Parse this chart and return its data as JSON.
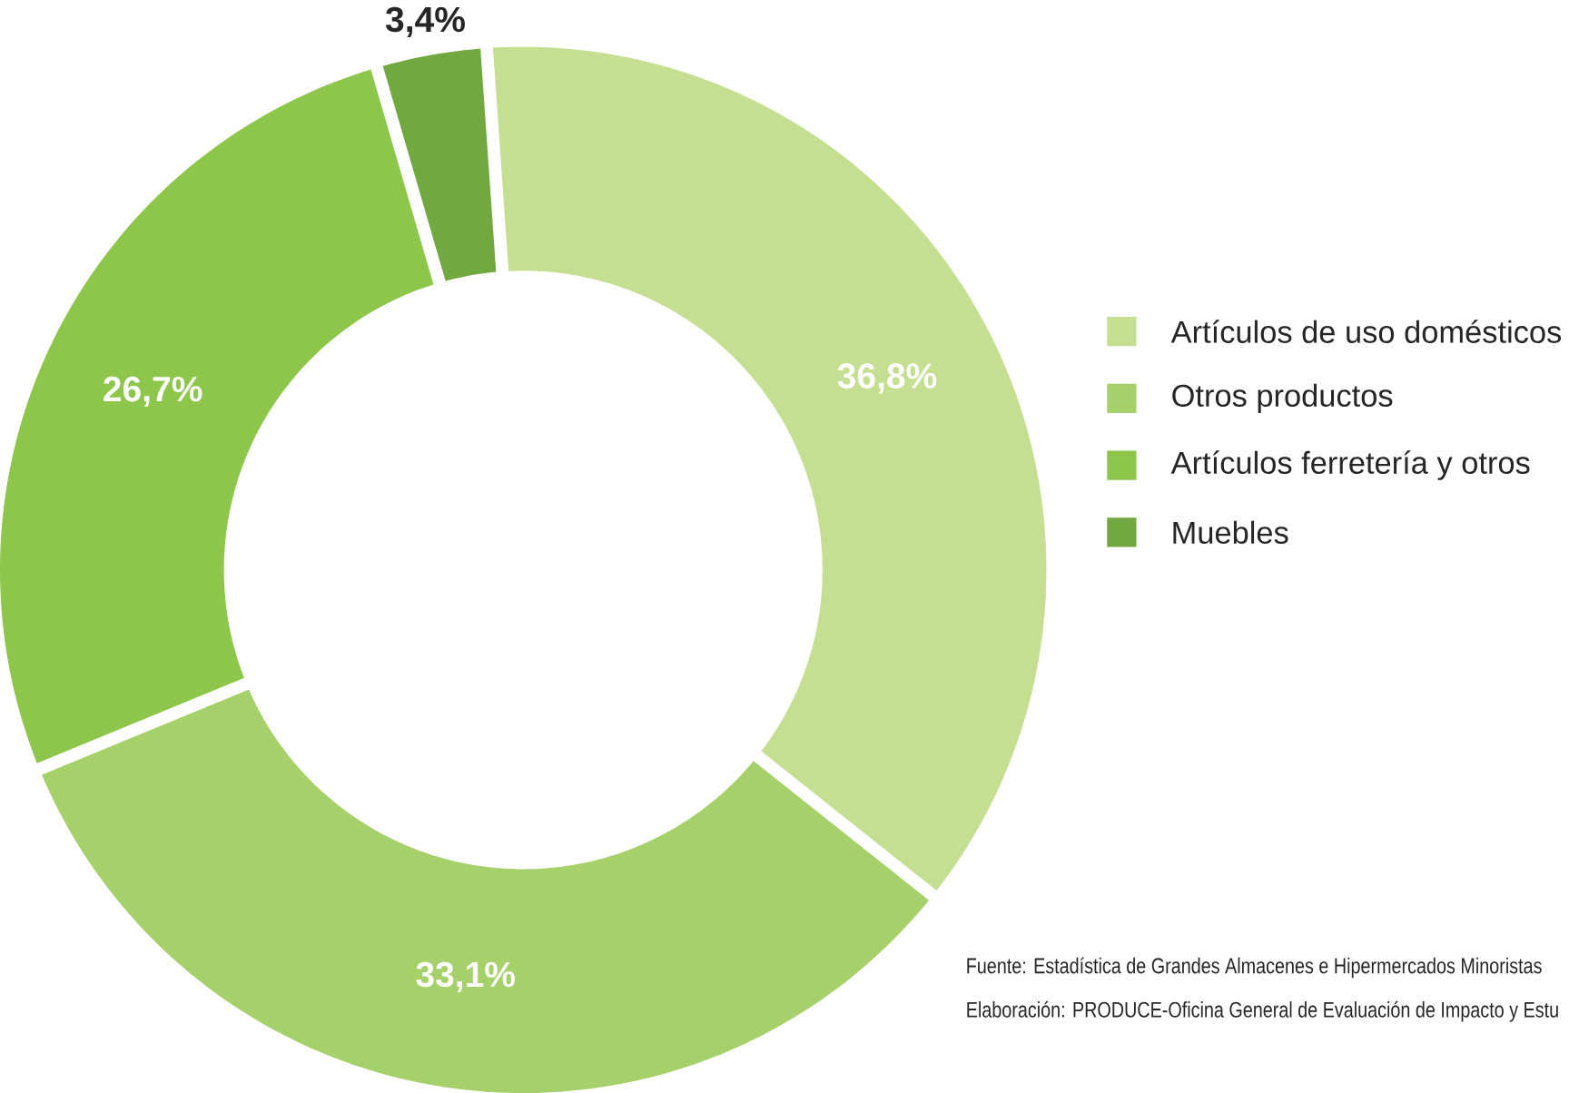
{
  "chart_data": {
    "type": "donut",
    "categories": [
      "Artículos de uso domésticos",
      "Otros productos",
      "Artículos ferretería y otros",
      "Muebles"
    ],
    "values": [
      36.8,
      33.1,
      26.7,
      3.4
    ],
    "value_labels": [
      "36,8%",
      "33,1%",
      "26,7%",
      "3,4%"
    ],
    "colors": [
      "#c5df92",
      "#a6d06a",
      "#8dc64b",
      "#72a840"
    ],
    "legend": "right",
    "annotations": [
      "Fuente: Estadística de Grandes Almacenes e Hipermercados Minoristas",
      "Elaboración: PRODUCE-Oficina General de Evaluación de Impacto y Estu"
    ]
  }
}
